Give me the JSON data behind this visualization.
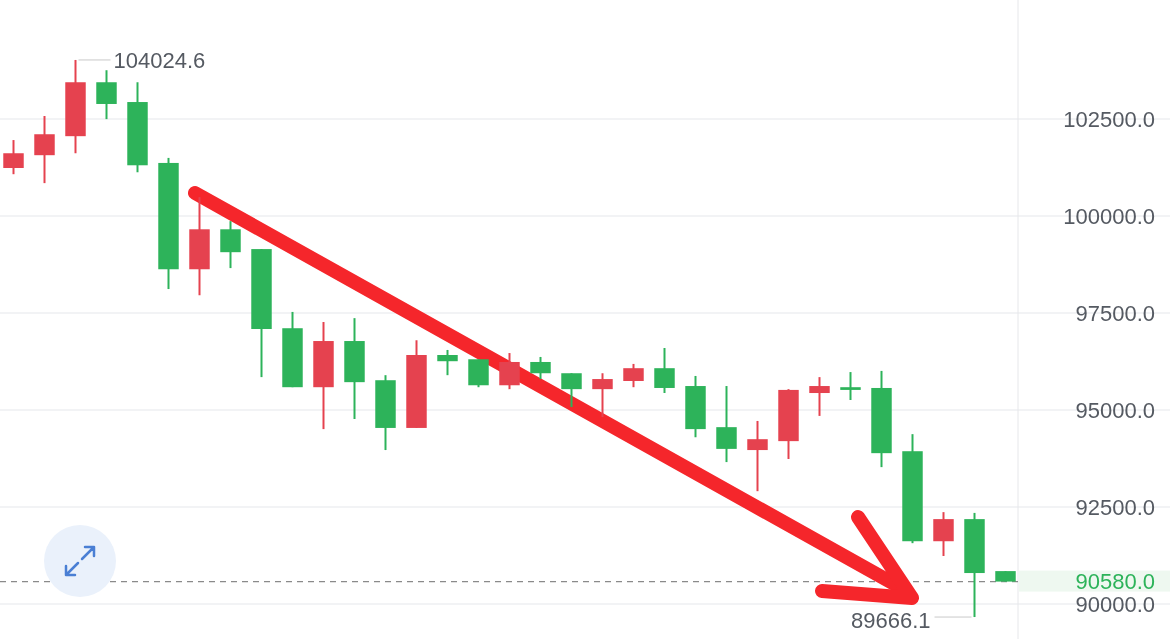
{
  "chart_data": {
    "type": "candlestick",
    "categories": [
      null,
      null,
      null,
      null,
      null,
      null,
      null,
      null,
      null,
      null,
      null,
      null,
      null,
      null,
      null,
      null,
      null,
      null,
      null,
      null,
      null,
      null,
      null,
      null,
      null,
      null,
      null,
      null,
      null,
      null,
      null,
      null,
      null
    ],
    "ohlc": [
      [
        101240,
        101960,
        101080,
        101620
      ],
      [
        101570,
        102580,
        100850,
        102110
      ],
      [
        102060,
        104024.6,
        101620,
        103450
      ],
      [
        103450,
        103760,
        102500,
        102890
      ],
      [
        102940,
        103450,
        101130,
        101310
      ],
      [
        101370,
        101500,
        98120,
        98630
      ],
      [
        98630,
        100490,
        97960,
        99660
      ],
      [
        99660,
        99870,
        98660,
        99070
      ],
      [
        99150,
        99150,
        95850,
        97090
      ],
      [
        97110,
        97530,
        95590,
        95590
      ],
      [
        95590,
        97270,
        94510,
        96780
      ],
      [
        96780,
        97370,
        94770,
        95720
      ],
      [
        95770,
        95900,
        93970,
        94540
      ],
      [
        94540,
        96800,
        94540,
        96420
      ],
      [
        96420,
        96550,
        95900,
        96260
      ],
      [
        96310,
        96310,
        95590,
        95640
      ],
      [
        95640,
        96470,
        95540,
        96240
      ],
      [
        96240,
        96370,
        95800,
        95950
      ],
      [
        95950,
        95950,
        95080,
        95540
      ],
      [
        95540,
        95950,
        94820,
        95800
      ],
      [
        95750,
        96190,
        95590,
        96080
      ],
      [
        96080,
        96600,
        95440,
        95570
      ],
      [
        95620,
        95880,
        94300,
        94510
      ],
      [
        94560,
        95620,
        93660,
        94000
      ],
      [
        93970,
        94720,
        92910,
        94250
      ],
      [
        94200,
        95540,
        93740,
        95520
      ],
      [
        95440,
        95850,
        94850,
        95620
      ],
      [
        95590,
        95980,
        95260,
        95520
      ],
      [
        95570,
        96010,
        93530,
        93890
      ],
      [
        93940,
        94380,
        91570,
        91620
      ],
      [
        91620,
        92370,
        91240,
        92190
      ],
      [
        92190,
        92350,
        89666.1,
        90800
      ],
      [
        90850,
        90850,
        90580,
        90580
      ]
    ],
    "colors": [
      "#e5424f",
      "#e5424f",
      "#e5424f",
      "#2db35a",
      "#2db35a",
      "#2db35a",
      "#e5424f",
      "#2db35a",
      "#2db35a",
      "#2db35a",
      "#e5424f",
      "#2db35a",
      "#2db35a",
      "#e5424f",
      "#2db35a",
      "#2db35a",
      "#e5424f",
      "#2db35a",
      "#2db35a",
      "#e5424f",
      "#e5424f",
      "#2db35a",
      "#2db35a",
      "#2db35a",
      "#e5424f",
      "#e5424f",
      "#e5424f",
      "#2db35a",
      "#2db35a",
      "#2db35a",
      "#e5424f",
      "#2db35a",
      "#2db35a"
    ],
    "ylim": [
      89100,
      105570
    ],
    "yticks": [
      {
        "value": 90000,
        "label": "90000.0"
      },
      {
        "value": 92500,
        "label": "92500.0"
      },
      {
        "value": 95000,
        "label": "95000.0"
      },
      {
        "value": 97500,
        "label": "97500.0"
      },
      {
        "value": 100000,
        "label": "100000.0"
      },
      {
        "value": 102500,
        "label": "102500.0"
      }
    ],
    "grid": "y",
    "ref_lines": [
      {
        "axis": "y",
        "value": 90580,
        "label": "90580.0",
        "color": "#8a8a8a",
        "line_style": "dashed"
      }
    ],
    "annotations": [
      "104024.6",
      "89666.1"
    ]
  }
}
